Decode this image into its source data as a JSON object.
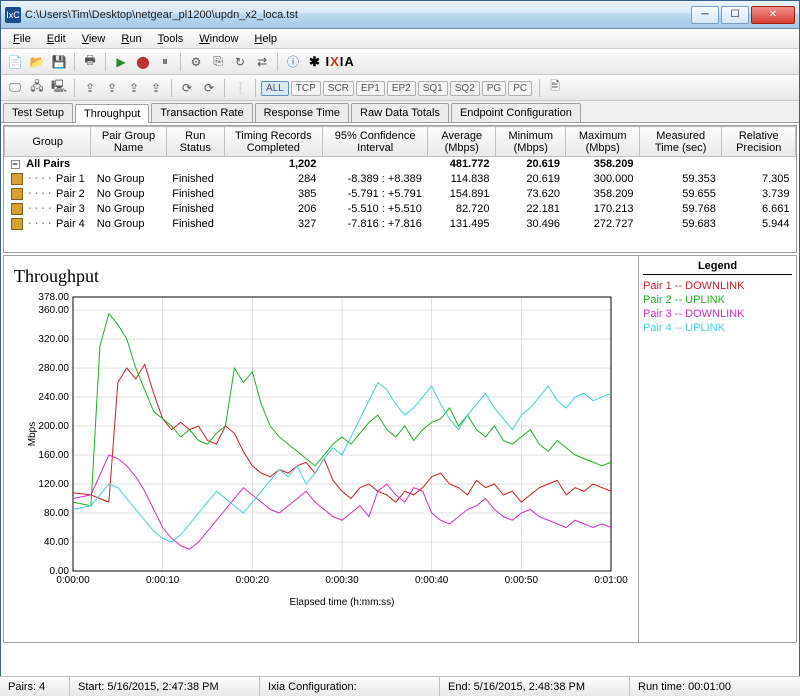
{
  "window": {
    "title": "C:\\Users\\Tim\\Desktop\\netgear_pl1200\\updn_x2_loca.tst",
    "icon_text": "IxC"
  },
  "menu": [
    "File",
    "Edit",
    "View",
    "Run",
    "Tools",
    "Window",
    "Help"
  ],
  "toolbar1": {
    "ixia_text": "IXIA"
  },
  "toolbar2": {
    "btns": [
      "ALL",
      "TCP",
      "SCR",
      "EP1",
      "EP2",
      "SQ1",
      "SQ2",
      "PG",
      "PC"
    ]
  },
  "tabs": [
    "Test Setup",
    "Throughput",
    "Transaction Rate",
    "Response Time",
    "Raw Data Totals",
    "Endpoint Configuration"
  ],
  "active_tab": 1,
  "table": {
    "headers": [
      "Group",
      "Pair Group Name",
      "Run Status",
      "Timing Records Completed",
      "95% Confidence Interval",
      "Average (Mbps)",
      "Minimum (Mbps)",
      "Maximum (Mbps)",
      "Measured Time (sec)",
      "Relative Precision"
    ],
    "all_pairs": {
      "label": "All Pairs",
      "records": "1,202",
      "avg": "481.772",
      "min": "20.619",
      "max": "358.209"
    },
    "rows": [
      {
        "pair": "Pair 1",
        "group": "No Group",
        "status": "Finished",
        "records": "284",
        "ci": "-8.389 : +8.389",
        "avg": "114.838",
        "min": "20.619",
        "max": "300.000",
        "time": "59.353",
        "prec": "7.305"
      },
      {
        "pair": "Pair 2",
        "group": "No Group",
        "status": "Finished",
        "records": "385",
        "ci": "-5.791 : +5.791",
        "avg": "154.891",
        "min": "73.620",
        "max": "358.209",
        "time": "59.655",
        "prec": "3.739"
      },
      {
        "pair": "Pair 3",
        "group": "No Group",
        "status": "Finished",
        "records": "206",
        "ci": "-5.510 : +5.510",
        "avg": "82.720",
        "min": "22.181",
        "max": "170.213",
        "time": "59.768",
        "prec": "6.661"
      },
      {
        "pair": "Pair 4",
        "group": "No Group",
        "status": "Finished",
        "records": "327",
        "ci": "-7.816 : +7.816",
        "avg": "131.495",
        "min": "30.496",
        "max": "272.727",
        "time": "59.683",
        "prec": "5.944"
      }
    ]
  },
  "chart": {
    "title": "Throughput",
    "ylabel": "Mbps",
    "xlabel": "Elapsed time (h:mm:ss)",
    "ylim": [
      0,
      378
    ],
    "yticks": [
      0,
      40,
      80,
      120,
      160,
      200,
      240,
      280,
      320,
      360,
      378
    ],
    "ytick_labels": [
      "0.00",
      "40.00",
      "80.00",
      "120.00",
      "160.00",
      "200.00",
      "240.00",
      "280.00",
      "320.00",
      "360.00",
      "378.00"
    ],
    "xticks": [
      0,
      10,
      20,
      30,
      40,
      50,
      60
    ],
    "xtick_labels": [
      "0:00:00",
      "0:00:10",
      "0:00:20",
      "0:00:30",
      "0:00:40",
      "0:00:50",
      "0:01:00"
    ],
    "background_color": "#ffffff",
    "grid_color": "#c0c0c0",
    "series": [
      {
        "name": "Pair 1 -- DOWNLINK",
        "color": "#d02020",
        "width": 1,
        "data": [
          [
            0,
            108
          ],
          [
            2,
            105
          ],
          [
            4,
            95
          ],
          [
            5,
            260
          ],
          [
            6,
            280
          ],
          [
            7,
            265
          ],
          [
            8,
            285
          ],
          [
            9,
            245
          ],
          [
            10,
            210
          ],
          [
            11,
            195
          ],
          [
            12,
            205
          ],
          [
            13,
            195
          ],
          [
            14,
            200
          ],
          [
            15,
            180
          ],
          [
            16,
            175
          ],
          [
            17,
            200
          ],
          [
            18,
            190
          ],
          [
            19,
            165
          ],
          [
            20,
            145
          ],
          [
            21,
            135
          ],
          [
            22,
            130
          ],
          [
            23,
            140
          ],
          [
            24,
            135
          ],
          [
            25,
            145
          ],
          [
            26,
            150
          ],
          [
            27,
            135
          ],
          [
            28,
            155
          ],
          [
            29,
            125
          ],
          [
            30,
            110
          ],
          [
            31,
            100
          ],
          [
            32,
            115
          ],
          [
            33,
            120
          ],
          [
            34,
            110
          ],
          [
            35,
            105
          ],
          [
            36,
            95
          ],
          [
            37,
            110
          ],
          [
            38,
            105
          ],
          [
            39,
            115
          ],
          [
            40,
            130
          ],
          [
            41,
            135
          ],
          [
            42,
            120
          ],
          [
            43,
            115
          ],
          [
            44,
            105
          ],
          [
            45,
            125
          ],
          [
            46,
            115
          ],
          [
            47,
            120
          ],
          [
            48,
            105
          ],
          [
            49,
            110
          ],
          [
            50,
            95
          ],
          [
            51,
            105
          ],
          [
            52,
            115
          ],
          [
            53,
            120
          ],
          [
            54,
            125
          ],
          [
            55,
            105
          ],
          [
            56,
            115
          ],
          [
            57,
            110
          ],
          [
            58,
            120
          ],
          [
            59,
            115
          ],
          [
            60,
            110
          ]
        ]
      },
      {
        "name": "Pair 2 -- UPLINK",
        "color": "#20b020",
        "width": 1,
        "data": [
          [
            0,
            95
          ],
          [
            2,
            90
          ],
          [
            3,
            310
          ],
          [
            4,
            355
          ],
          [
            5,
            340
          ],
          [
            6,
            320
          ],
          [
            7,
            280
          ],
          [
            8,
            250
          ],
          [
            9,
            220
          ],
          [
            10,
            210
          ],
          [
            11,
            200
          ],
          [
            12,
            185
          ],
          [
            13,
            195
          ],
          [
            14,
            180
          ],
          [
            15,
            175
          ],
          [
            16,
            190
          ],
          [
            17,
            200
          ],
          [
            18,
            280
          ],
          [
            19,
            260
          ],
          [
            20,
            275
          ],
          [
            21,
            230
          ],
          [
            22,
            200
          ],
          [
            23,
            185
          ],
          [
            24,
            175
          ],
          [
            25,
            165
          ],
          [
            26,
            155
          ],
          [
            27,
            145
          ],
          [
            28,
            160
          ],
          [
            29,
            175
          ],
          [
            30,
            185
          ],
          [
            31,
            175
          ],
          [
            32,
            190
          ],
          [
            33,
            205
          ],
          [
            34,
            215
          ],
          [
            35,
            195
          ],
          [
            36,
            185
          ],
          [
            37,
            200
          ],
          [
            38,
            180
          ],
          [
            39,
            195
          ],
          [
            40,
            205
          ],
          [
            41,
            210
          ],
          [
            42,
            225
          ],
          [
            43,
            200
          ],
          [
            44,
            215
          ],
          [
            45,
            195
          ],
          [
            46,
            185
          ],
          [
            47,
            200
          ],
          [
            48,
            180
          ],
          [
            49,
            175
          ],
          [
            50,
            185
          ],
          [
            51,
            195
          ],
          [
            52,
            175
          ],
          [
            53,
            165
          ],
          [
            54,
            180
          ],
          [
            55,
            170
          ],
          [
            56,
            160
          ],
          [
            57,
            155
          ],
          [
            58,
            150
          ],
          [
            59,
            145
          ],
          [
            60,
            150
          ]
        ]
      },
      {
        "name": "Pair 3 -- DOWNLINK",
        "color": "#d030c0",
        "width": 1,
        "data": [
          [
            0,
            100
          ],
          [
            2,
            105
          ],
          [
            4,
            160
          ],
          [
            5,
            155
          ],
          [
            6,
            145
          ],
          [
            7,
            130
          ],
          [
            8,
            110
          ],
          [
            9,
            85
          ],
          [
            10,
            60
          ],
          [
            11,
            45
          ],
          [
            12,
            35
          ],
          [
            13,
            30
          ],
          [
            14,
            40
          ],
          [
            15,
            55
          ],
          [
            16,
            70
          ],
          [
            17,
            85
          ],
          [
            18,
            100
          ],
          [
            19,
            115
          ],
          [
            20,
            105
          ],
          [
            21,
            95
          ],
          [
            22,
            85
          ],
          [
            23,
            80
          ],
          [
            24,
            90
          ],
          [
            25,
            100
          ],
          [
            26,
            110
          ],
          [
            27,
            95
          ],
          [
            28,
            85
          ],
          [
            29,
            75
          ],
          [
            30,
            70
          ],
          [
            31,
            80
          ],
          [
            32,
            90
          ],
          [
            33,
            75
          ],
          [
            34,
            110
          ],
          [
            35,
            120
          ],
          [
            36,
            105
          ],
          [
            37,
            95
          ],
          [
            38,
            115
          ],
          [
            39,
            110
          ],
          [
            40,
            80
          ],
          [
            41,
            70
          ],
          [
            42,
            65
          ],
          [
            43,
            75
          ],
          [
            44,
            85
          ],
          [
            45,
            90
          ],
          [
            46,
            100
          ],
          [
            47,
            85
          ],
          [
            48,
            75
          ],
          [
            49,
            70
          ],
          [
            50,
            80
          ],
          [
            51,
            85
          ],
          [
            52,
            75
          ],
          [
            53,
            70
          ],
          [
            54,
            65
          ],
          [
            55,
            60
          ],
          [
            56,
            70
          ],
          [
            57,
            65
          ],
          [
            58,
            60
          ],
          [
            59,
            65
          ],
          [
            60,
            60
          ]
        ]
      },
      {
        "name": "Pair 4 -- UPLINK",
        "color": "#40d0e0",
        "width": 1,
        "data": [
          [
            0,
            85
          ],
          [
            2,
            90
          ],
          [
            4,
            120
          ],
          [
            5,
            115
          ],
          [
            6,
            100
          ],
          [
            7,
            85
          ],
          [
            8,
            70
          ],
          [
            9,
            55
          ],
          [
            10,
            45
          ],
          [
            11,
            40
          ],
          [
            12,
            50
          ],
          [
            13,
            65
          ],
          [
            14,
            80
          ],
          [
            15,
            95
          ],
          [
            16,
            110
          ],
          [
            17,
            100
          ],
          [
            18,
            90
          ],
          [
            19,
            80
          ],
          [
            20,
            95
          ],
          [
            21,
            110
          ],
          [
            22,
            125
          ],
          [
            23,
            140
          ],
          [
            24,
            130
          ],
          [
            25,
            145
          ],
          [
            26,
            120
          ],
          [
            27,
            135
          ],
          [
            28,
            155
          ],
          [
            29,
            170
          ],
          [
            30,
            160
          ],
          [
            31,
            185
          ],
          [
            32,
            210
          ],
          [
            33,
            235
          ],
          [
            34,
            260
          ],
          [
            35,
            250
          ],
          [
            36,
            230
          ],
          [
            37,
            215
          ],
          [
            38,
            225
          ],
          [
            39,
            240
          ],
          [
            40,
            255
          ],
          [
            41,
            230
          ],
          [
            42,
            210
          ],
          [
            43,
            195
          ],
          [
            44,
            215
          ],
          [
            45,
            230
          ],
          [
            46,
            245
          ],
          [
            47,
            225
          ],
          [
            48,
            210
          ],
          [
            49,
            195
          ],
          [
            50,
            215
          ],
          [
            51,
            225
          ],
          [
            52,
            240
          ],
          [
            53,
            255
          ],
          [
            54,
            235
          ],
          [
            55,
            225
          ],
          [
            56,
            240
          ],
          [
            57,
            245
          ],
          [
            58,
            235
          ],
          [
            59,
            240
          ],
          [
            60,
            245
          ]
        ]
      }
    ]
  },
  "legend": {
    "title": "Legend",
    "items": [
      {
        "label": "Pair 1 -- DOWNLINK",
        "color": "#d02020"
      },
      {
        "label": "Pair 2 -- UPLINK",
        "color": "#20b020"
      },
      {
        "label": "Pair 3 -- DOWNLINK",
        "color": "#d030c0"
      },
      {
        "label": "Pair 4 -- UPLINK",
        "color": "#40d0e0"
      }
    ]
  },
  "status": {
    "pairs": "Pairs: 4",
    "start": "Start: 5/16/2015, 2:47:38 PM",
    "config": "Ixia Configuration:",
    "end": "End: 5/16/2015, 2:48:38 PM",
    "runtime": "Run time: 00:01:00"
  }
}
